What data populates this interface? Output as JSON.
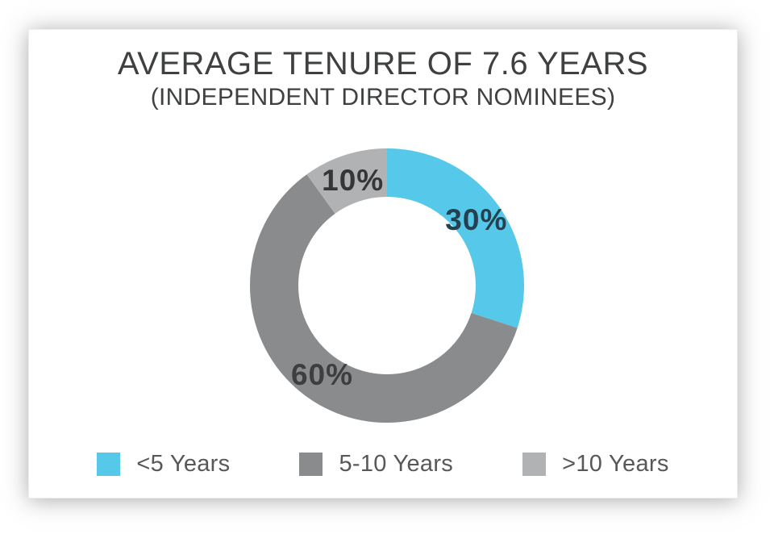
{
  "card": {
    "title": "AVERAGE TENURE OF 7.6 YEARS",
    "subtitle": "(INDEPENDENT DIRECTOR NOMINEES)"
  },
  "chart_data": {
    "type": "pie",
    "variant": "donut",
    "title": "AVERAGE TENURE OF 7.6 YEARS",
    "subtitle": "(INDEPENDENT DIRECTOR NOMINEES)",
    "start_angle_deg": 0,
    "direction": "clockwise",
    "inner_radius_ratio": 0.647,
    "legend_position": "bottom",
    "slices": [
      {
        "label": "<5 Years",
        "value": 30,
        "data_label": "30%",
        "color": "#56C8EA",
        "data_label_color": "#25404F"
      },
      {
        "label": "5-10 Years",
        "value": 60,
        "data_label": "60%",
        "color": "#8A8B8D",
        "data_label_color": "#3E3E40"
      },
      {
        "label": ">10 Years",
        "value": 10,
        "data_label": "10%",
        "color": "#B1B2B4",
        "data_label_color": "#363638"
      }
    ]
  }
}
